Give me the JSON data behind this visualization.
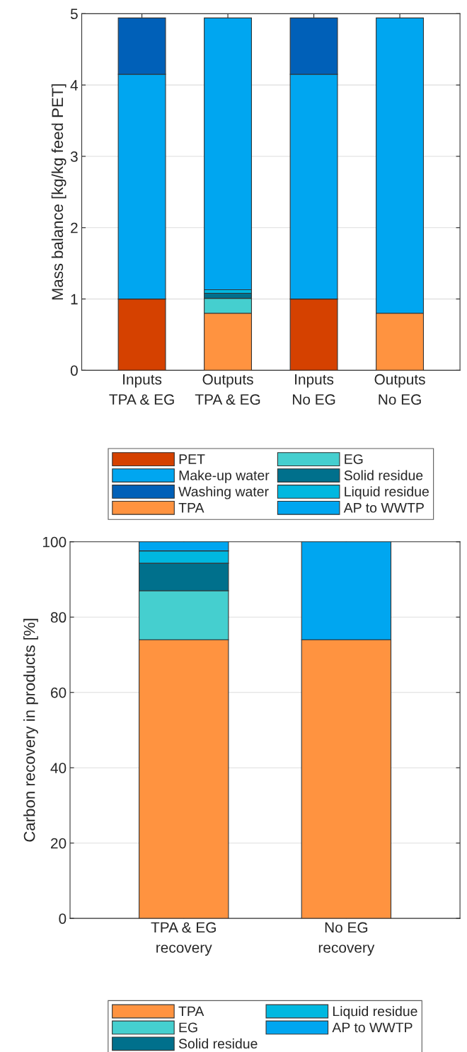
{
  "chart_data": [
    {
      "type": "bar",
      "stacked": true,
      "ylabel": "Mass balance [kg/kg feed PET]",
      "categories": [
        "Inputs\nTPA & EG",
        "Outputs\nTPA & EG",
        "Inputs\nNo EG",
        "Outputs\nNo EG"
      ],
      "ylim": [
        0,
        5
      ],
      "yticks": [
        0,
        1,
        2,
        3,
        4,
        5
      ],
      "grid": "y",
      "legend": "bottom",
      "series": [
        {
          "name": "PET",
          "color": "#d54100",
          "values": [
            1.0,
            null,
            1.0,
            null
          ]
        },
        {
          "name": "Make-up water",
          "color": "#00a6f0",
          "values": [
            3.15,
            null,
            3.15,
            null
          ]
        },
        {
          "name": "Washing water",
          "color": "#0060b8",
          "values": [
            0.79,
            null,
            0.79,
            null
          ]
        },
        {
          "name": "TPA",
          "color": "#ff9340",
          "values": [
            null,
            0.8,
            null,
            0.8
          ]
        },
        {
          "name": "EG",
          "color": "#45cfcf",
          "values": [
            null,
            0.21,
            null,
            null
          ]
        },
        {
          "name": "Solid residue",
          "color": "#00708c",
          "values": [
            null,
            0.07,
            null,
            null
          ]
        },
        {
          "name": "Liquid residue",
          "color": "#00b8e0",
          "values": [
            null,
            0.05,
            null,
            null
          ]
        },
        {
          "name": "AP to WWTP",
          "color": "#00a6f0",
          "values": [
            null,
            3.81,
            null,
            4.14
          ]
        }
      ]
    },
    {
      "type": "bar",
      "stacked": true,
      "ylabel": "Carbon recovery in products [%]",
      "categories": [
        "TPA & EG\nrecovery",
        "No EG\nrecovery"
      ],
      "ylim": [
        0,
        100
      ],
      "yticks": [
        0,
        20,
        40,
        60,
        80,
        100
      ],
      "grid": "y",
      "legend": "bottom",
      "series": [
        {
          "name": "TPA",
          "color": "#ff9340",
          "values": [
            74,
            74
          ]
        },
        {
          "name": "EG",
          "color": "#45cfcf",
          "values": [
            13,
            null
          ]
        },
        {
          "name": "Solid residue",
          "color": "#00708c",
          "values": [
            7.3,
            null
          ]
        },
        {
          "name": "Liquid residue",
          "color": "#00b8e0",
          "values": [
            3.3,
            null
          ]
        },
        {
          "name": "AP to WWTP",
          "color": "#00a6f0",
          "values": [
            2.4,
            26
          ]
        }
      ]
    }
  ]
}
